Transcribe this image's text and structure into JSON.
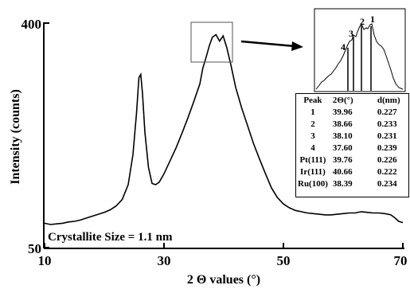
{
  "chart_data": {
    "type": "line",
    "title": "",
    "xlabel": "2 Θ values (°)",
    "ylabel": "Intensity (counts)",
    "xlim": [
      10,
      70
    ],
    "ylim": [
      50,
      400
    ],
    "x_ticks": [
      "10",
      "30",
      "50",
      "70"
    ],
    "y_ticks": [
      "50",
      "400"
    ],
    "annotation": "Crystallite Size = 1.1 nm",
    "grid": false,
    "series": [
      {
        "points": [
          [
            10,
            88
          ],
          [
            11,
            86
          ],
          [
            12,
            87
          ],
          [
            13,
            88
          ],
          [
            14,
            90
          ],
          [
            15,
            91
          ],
          [
            16,
            93
          ],
          [
            17,
            96
          ],
          [
            18,
            99
          ],
          [
            19,
            102
          ],
          [
            20,
            105
          ],
          [
            21,
            109
          ],
          [
            22,
            115
          ],
          [
            23,
            125
          ],
          [
            24,
            148
          ],
          [
            24.8,
            195
          ],
          [
            25.4,
            260
          ],
          [
            25.8,
            315
          ],
          [
            26.1,
            320
          ],
          [
            26.4,
            290
          ],
          [
            26.8,
            230
          ],
          [
            27.4,
            175
          ],
          [
            28,
            150
          ],
          [
            28.6,
            148
          ],
          [
            29.2,
            152
          ],
          [
            30,
            165
          ],
          [
            31,
            185
          ],
          [
            32,
            205
          ],
          [
            33,
            228
          ],
          [
            34,
            252
          ],
          [
            35,
            278
          ],
          [
            36,
            305
          ],
          [
            36.5,
            330
          ],
          [
            37,
            345
          ],
          [
            37.6,
            365
          ],
          [
            38.1,
            378
          ],
          [
            38.7,
            382
          ],
          [
            39.3,
            372
          ],
          [
            39.9,
            380
          ],
          [
            40.5,
            362
          ],
          [
            41.2,
            335
          ],
          [
            42,
            300
          ],
          [
            43,
            268
          ],
          [
            44,
            240
          ],
          [
            45,
            212
          ],
          [
            46,
            188
          ],
          [
            47,
            165
          ],
          [
            48,
            143
          ],
          [
            49,
            128
          ],
          [
            50,
            118
          ],
          [
            51,
            112
          ],
          [
            52,
            108
          ],
          [
            53,
            106
          ],
          [
            54,
            104
          ],
          [
            55,
            103
          ],
          [
            56,
            102
          ],
          [
            57,
            101
          ],
          [
            58,
            101
          ],
          [
            59,
            102
          ],
          [
            60,
            103
          ],
          [
            61,
            104
          ],
          [
            62,
            104
          ],
          [
            63,
            106
          ],
          [
            64,
            105
          ],
          [
            65,
            104
          ],
          [
            66,
            104
          ],
          [
            67,
            103
          ],
          [
            68,
            101
          ],
          [
            68.7,
            96
          ],
          [
            69.3,
            91
          ],
          [
            70,
            89
          ]
        ]
      }
    ]
  },
  "inset": {
    "labels": [
      "4",
      "3",
      "2",
      "1"
    ]
  },
  "table": {
    "headers": [
      "Peak",
      "2Θ(°)",
      "d(nm)"
    ],
    "rows": [
      [
        "1",
        "39.96",
        "0.227"
      ],
      [
        "2",
        "38.66",
        "0.233"
      ],
      [
        "3",
        "38.10",
        "0.231"
      ],
      [
        "4",
        "37.60",
        "0.239"
      ],
      [
        "Pt(111)",
        "39.76",
        "0.226"
      ],
      [
        "Ir(111)",
        "40.66",
        "0.222"
      ],
      [
        "Ru(100)",
        "38.39",
        "0.234"
      ]
    ]
  }
}
